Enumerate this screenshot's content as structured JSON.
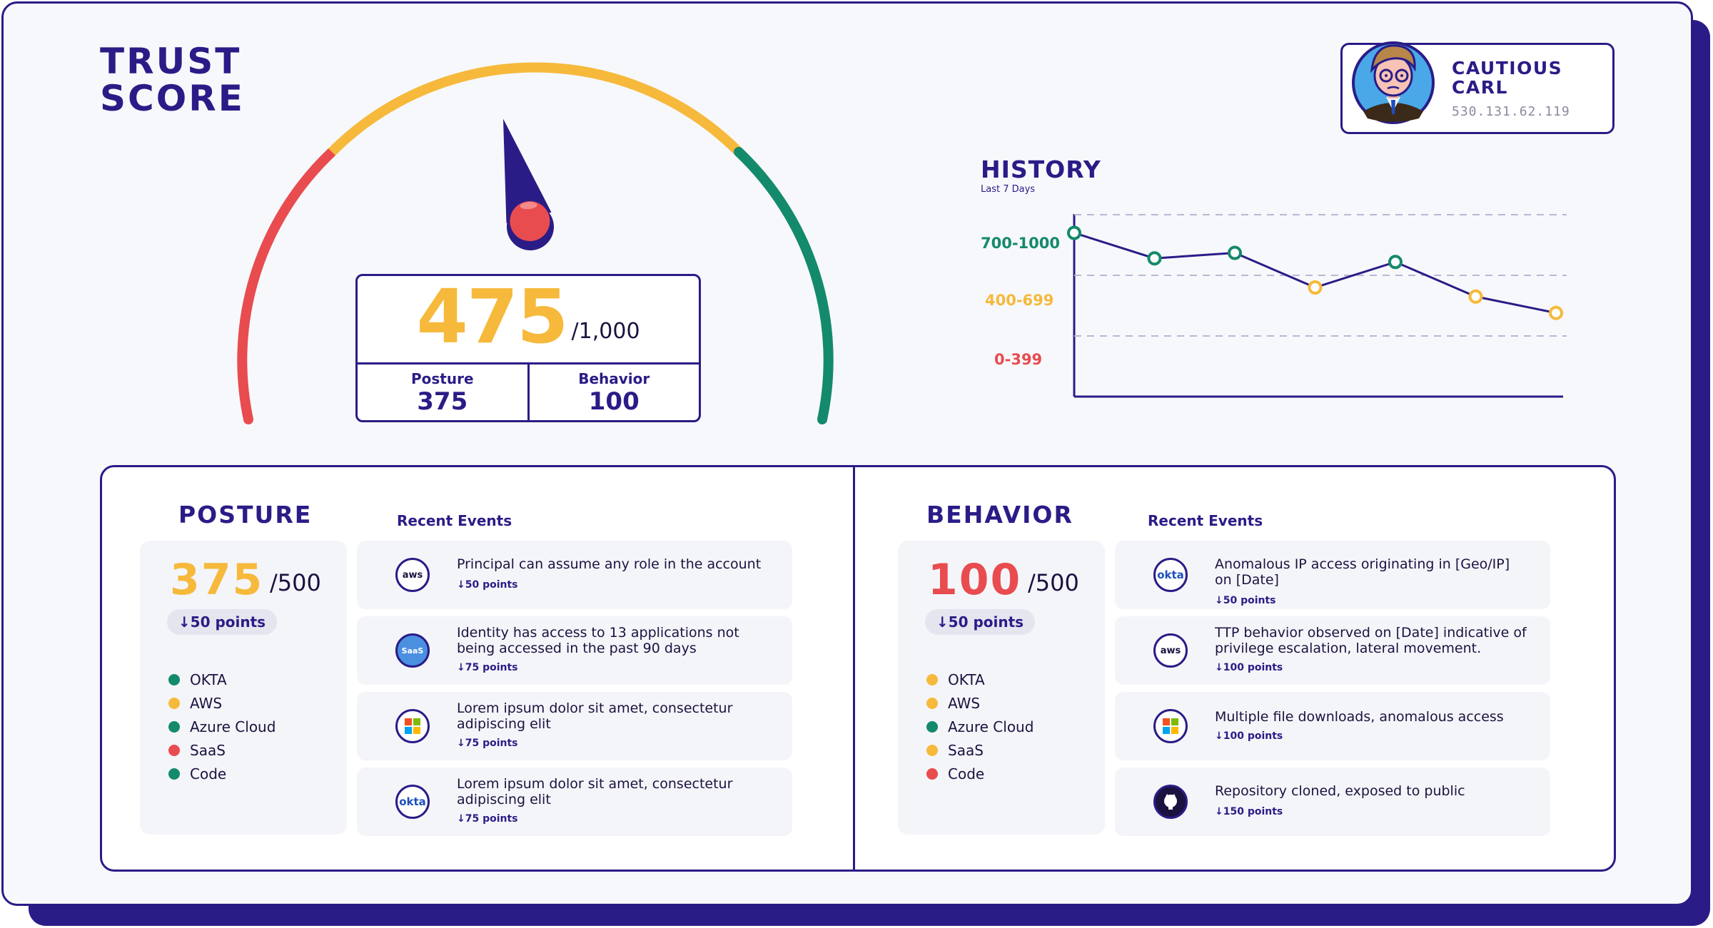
{
  "trust": {
    "title_line1": "TRUST",
    "title_line2": "SCORE"
  },
  "score": {
    "value": "475",
    "out_of": "/1,000",
    "posture_label": "Posture",
    "posture_value": "375",
    "behavior_label": "Behavior",
    "behavior_value": "100",
    "gauge_fraction": 0.475
  },
  "user": {
    "name_line1": "CAUTIOUS",
    "name_line2": "CARL",
    "ip": "530.131.62.119"
  },
  "history": {
    "title": "HISTORY",
    "subtitle": "Last 7 Days",
    "band_labels": [
      "700-1000",
      "400-699",
      "0-399"
    ]
  },
  "chart_data": {
    "type": "line",
    "title": "HISTORY",
    "subtitle": "Last 7 Days",
    "y_bands": [
      {
        "label": "700-1000",
        "range": [
          700,
          1000
        ],
        "color": "#138a6b"
      },
      {
        "label": "400-699",
        "range": [
          400,
          699
        ],
        "color": "#f6b93b"
      },
      {
        "label": "0-399",
        "range": [
          0,
          399
        ],
        "color": "#e84c4f"
      }
    ],
    "ylim": [
      0,
      1000
    ],
    "grid": true,
    "series": [
      {
        "values": [
          900,
          760,
          790,
          600,
          740,
          550,
          460
        ]
      }
    ]
  },
  "posture": {
    "title": "POSTURE",
    "recent_label": "Recent Events",
    "score": "375",
    "out_of": "/500",
    "delta": "↓50 points",
    "sources": [
      {
        "name": "OKTA",
        "color": "#138a6b"
      },
      {
        "name": "AWS",
        "color": "#f6b93b"
      },
      {
        "name": "Azure Cloud",
        "color": "#138a6b"
      },
      {
        "name": "SaaS",
        "color": "#e84c4f"
      },
      {
        "name": "Code",
        "color": "#138a6b"
      }
    ],
    "events": [
      {
        "icon": "aws",
        "text": "Principal can assume any role in the account",
        "points": "↓50 points"
      },
      {
        "icon": "SaaS",
        "text": "Identity has access to 13 applications not being accessed in the past 90 days",
        "points": "↓75 points"
      },
      {
        "icon": "microsoft",
        "text": "Lorem ipsum dolor sit amet, consectetur adipiscing elit",
        "points": "↓75 points"
      },
      {
        "icon": "okta",
        "text": "Lorem ipsum dolor sit amet, consectetur adipiscing elit",
        "points": "↓75 points"
      }
    ]
  },
  "behavior": {
    "title": "BEHAVIOR",
    "recent_label": "Recent Events",
    "score": "100",
    "out_of": "/500",
    "delta": "↓50 points",
    "sources": [
      {
        "name": "OKTA",
        "color": "#f6b93b"
      },
      {
        "name": "AWS",
        "color": "#f6b93b"
      },
      {
        "name": "Azure Cloud",
        "color": "#138a6b"
      },
      {
        "name": "SaaS",
        "color": "#f6b93b"
      },
      {
        "name": "Code",
        "color": "#e84c4f"
      }
    ],
    "events": [
      {
        "icon": "okta",
        "text": "Anomalous IP access originating in [Geo/IP] on [Date]",
        "points": "↓50 points"
      },
      {
        "icon": "aws",
        "text": "TTP behavior observed on [Date] indicative of privilege escalation, lateral movement.",
        "points": "↓100 points"
      },
      {
        "icon": "microsoft",
        "text": "Multiple file downloads, anomalous access",
        "points": "↓100 points"
      },
      {
        "icon": "github",
        "text": "Repository cloned, exposed to public",
        "points": "↓150 points"
      }
    ]
  },
  "colors": {
    "navy": "#2a1c87",
    "green": "#138a6b",
    "yellow": "#f6b93b",
    "red": "#e84c4f"
  }
}
